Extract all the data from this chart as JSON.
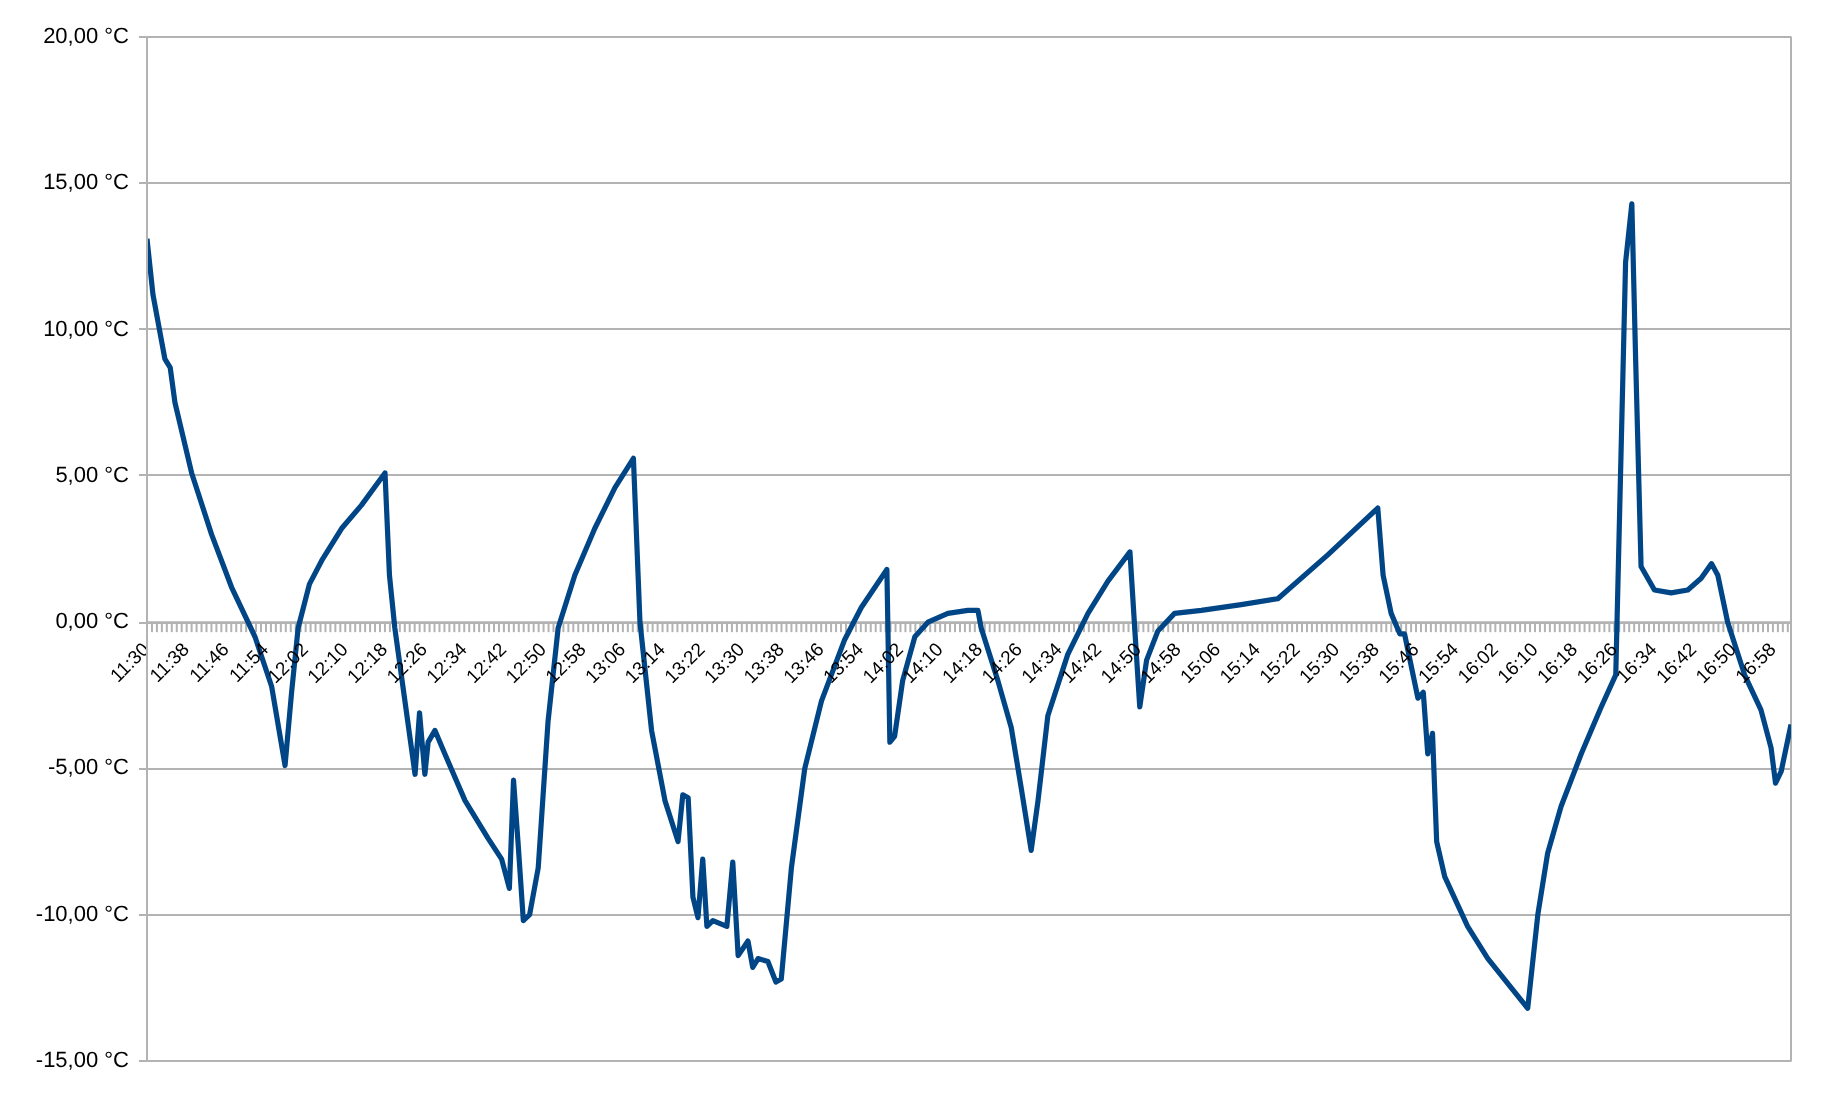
{
  "chart_data": {
    "type": "line",
    "color": "#004586",
    "grid": "y",
    "xlim": [
      11.5,
      17.026
    ],
    "ylim": [
      -15,
      20
    ],
    "yticks": [
      {
        "value": -15,
        "label": "-15,00 °C"
      },
      {
        "value": -10,
        "label": "-10,00 °C"
      },
      {
        "value": -5,
        "label": "-5,00 °C"
      },
      {
        "value": 0,
        "label": "0,00 °C"
      },
      {
        "value": 5,
        "label": "5,00 °C"
      },
      {
        "value": 10,
        "label": "10,00 °C"
      },
      {
        "value": 15,
        "label": "15,00 °C"
      },
      {
        "value": 20,
        "label": "20,00 °C"
      }
    ],
    "xticks": [
      {
        "value": 11.5,
        "label": "11:30"
      },
      {
        "value": 11.6333,
        "label": "11:38"
      },
      {
        "value": 11.7667,
        "label": "11:46"
      },
      {
        "value": 11.9,
        "label": "11:54"
      },
      {
        "value": 12.0333,
        "label": "12:02"
      },
      {
        "value": 12.1667,
        "label": "12:10"
      },
      {
        "value": 12.3,
        "label": "12:18"
      },
      {
        "value": 12.4333,
        "label": "12:26"
      },
      {
        "value": 12.5667,
        "label": "12:34"
      },
      {
        "value": 12.7,
        "label": "12:42"
      },
      {
        "value": 12.8333,
        "label": "12:50"
      },
      {
        "value": 12.9667,
        "label": "12:58"
      },
      {
        "value": 13.1,
        "label": "13:06"
      },
      {
        "value": 13.2333,
        "label": "13:14"
      },
      {
        "value": 13.3667,
        "label": "13:22"
      },
      {
        "value": 13.5,
        "label": "13:30"
      },
      {
        "value": 13.6333,
        "label": "13:38"
      },
      {
        "value": 13.7667,
        "label": "13:46"
      },
      {
        "value": 13.9,
        "label": "13:54"
      },
      {
        "value": 14.0333,
        "label": "14:02"
      },
      {
        "value": 14.1667,
        "label": "14:10"
      },
      {
        "value": 14.3,
        "label": "14:18"
      },
      {
        "value": 14.4333,
        "label": "14:26"
      },
      {
        "value": 14.5667,
        "label": "14:34"
      },
      {
        "value": 14.7,
        "label": "14:42"
      },
      {
        "value": 14.8333,
        "label": "14:50"
      },
      {
        "value": 14.9667,
        "label": "14:58"
      },
      {
        "value": 15.1,
        "label": "15:06"
      },
      {
        "value": 15.2333,
        "label": "15:14"
      },
      {
        "value": 15.3667,
        "label": "15:22"
      },
      {
        "value": 15.5,
        "label": "15:30"
      },
      {
        "value": 15.6333,
        "label": "15:38"
      },
      {
        "value": 15.7667,
        "label": "15:46"
      },
      {
        "value": 15.9,
        "label": "15:54"
      },
      {
        "value": 16.0333,
        "label": "16:02"
      },
      {
        "value": 16.1667,
        "label": "16:10"
      },
      {
        "value": 16.3,
        "label": "16:18"
      },
      {
        "value": 16.4333,
        "label": "16:26"
      },
      {
        "value": 16.5667,
        "label": "16:34"
      },
      {
        "value": 16.7,
        "label": "16:42"
      },
      {
        "value": 16.8333,
        "label": "16:50"
      },
      {
        "value": 16.9667,
        "label": "16:58"
      }
    ],
    "x": [
      11.5,
      11.52,
      11.56,
      11.578,
      11.594,
      11.65,
      11.717,
      11.784,
      11.863,
      11.919,
      11.964,
      11.986,
      12.008,
      12.046,
      12.087,
      12.154,
      12.221,
      12.3,
      12.315,
      12.333,
      12.367,
      12.401,
      12.416,
      12.434,
      12.445,
      12.468,
      12.501,
      12.569,
      12.647,
      12.692,
      12.718,
      12.732,
      12.747,
      12.765,
      12.786,
      12.815,
      12.848,
      12.882,
      12.938,
      13.005,
      13.073,
      13.135,
      13.157,
      13.196,
      13.241,
      13.285,
      13.301,
      13.319,
      13.335,
      13.352,
      13.368,
      13.382,
      13.402,
      13.449,
      13.469,
      13.487,
      13.52,
      13.536,
      13.554,
      13.587,
      13.614,
      13.632,
      13.666,
      13.711,
      13.767,
      13.845,
      13.901,
      13.987,
      13.997,
      14.013,
      14.04,
      14.081,
      14.125,
      14.192,
      14.259,
      14.293,
      14.304,
      14.36,
      14.405,
      14.439,
      14.472,
      14.495,
      14.528,
      14.595,
      14.663,
      14.73,
      14.804,
      14.82,
      14.837,
      14.86,
      14.898,
      14.954,
      15.044,
      15.178,
      15.301,
      15.469,
      15.637,
      15.655,
      15.682,
      15.711,
      15.727,
      15.772,
      15.79,
      15.805,
      15.821,
      15.835,
      15.862,
      15.939,
      16.007,
      16.141,
      16.175,
      16.208,
      16.253,
      16.321,
      16.388,
      16.437,
      16.47,
      16.491,
      16.504,
      16.522,
      16.567,
      16.623,
      16.679,
      16.724,
      16.759,
      16.78,
      16.813,
      16.87,
      16.925,
      16.959,
      16.974,
      16.993,
      17.026
    ],
    "values": [
      13.1,
      11.2,
      9.0,
      8.7,
      7.5,
      5.1,
      3.0,
      1.2,
      -0.5,
      -2.2,
      -4.9,
      -2.4,
      -0.2,
      1.3,
      2.1,
      3.2,
      4.0,
      5.1,
      1.6,
      -0.2,
      -2.7,
      -5.2,
      -3.1,
      -5.2,
      -4.1,
      -3.7,
      -4.5,
      -6.1,
      -7.4,
      -8.1,
      -9.1,
      -5.4,
      -7.5,
      -10.2,
      -10.0,
      -8.4,
      -3.4,
      -0.2,
      1.6,
      3.2,
      4.6,
      5.6,
      0.0,
      -3.7,
      -6.1,
      -7.5,
      -5.9,
      -6.0,
      -9.4,
      -10.1,
      -8.1,
      -10.4,
      -10.2,
      -10.4,
      -8.2,
      -11.4,
      -10.9,
      -11.8,
      -11.5,
      -11.6,
      -12.3,
      -12.2,
      -8.4,
      -5.0,
      -2.7,
      -0.6,
      0.5,
      1.8,
      -4.1,
      -3.9,
      -2.0,
      -0.5,
      0.0,
      0.3,
      0.4,
      0.4,
      -0.2,
      -2.0,
      -3.6,
      -5.7,
      -7.8,
      -6.1,
      -3.2,
      -1.1,
      0.3,
      1.4,
      2.4,
      -0.2,
      -2.9,
      -1.3,
      -0.3,
      0.3,
      0.4,
      0.6,
      0.8,
      2.3,
      3.9,
      1.6,
      0.3,
      -0.4,
      -0.4,
      -2.6,
      -2.4,
      -4.5,
      -3.8,
      -7.5,
      -8.7,
      -10.4,
      -11.5,
      -13.2,
      -10.0,
      -7.9,
      -6.3,
      -4.5,
      -2.9,
      -1.8,
      12.3,
      14.3,
      8.9,
      1.9,
      1.1,
      1.0,
      1.1,
      1.5,
      2.0,
      1.6,
      0.0,
      -1.8,
      -3.0,
      -4.3,
      -5.5,
      -5.1,
      -3.5
    ]
  }
}
